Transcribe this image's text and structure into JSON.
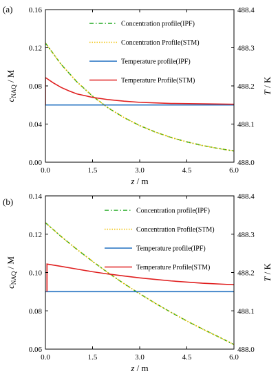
{
  "chart_data": [
    {
      "type": "line",
      "panel_label": "(a)",
      "xlabel_var": "z",
      "xlabel_unit": " / m",
      "ylabel_var": "c",
      "ylabel_sub": "NAQ",
      "ylabel_unit": " / M",
      "y2label_var": "T",
      "y2label_unit": " / K",
      "xlim": [
        0,
        6.0
      ],
      "ylim": [
        0,
        0.16
      ],
      "y2lim": [
        488.0,
        488.4
      ],
      "xticks": [
        "0.0",
        "1.5",
        "3.0",
        "4.5",
        "6.0"
      ],
      "yticks": [
        "0.00",
        "0.04",
        "0.08",
        "0.12",
        "0.16"
      ],
      "y2ticks": [
        "488.0",
        "488.1",
        "488.2",
        "488.3",
        "488.4"
      ],
      "legend": "top-right",
      "series": [
        {
          "name": "Concentration profile(IPF)",
          "axis": "left",
          "color": "#22aa22",
          "dash": "6,3,1.5,3",
          "x": [
            0,
            0.5,
            1.0,
            1.5,
            2.0,
            2.5,
            3.0,
            3.5,
            4.0,
            4.5,
            5.0,
            5.5,
            6.0
          ],
          "y": [
            0.125,
            0.1026,
            0.0843,
            0.0693,
            0.0569,
            0.0468,
            0.0384,
            0.0316,
            0.0259,
            0.0213,
            0.0175,
            0.0144,
            0.0118
          ]
        },
        {
          "name": "Concentration Profile(STM)",
          "axis": "left",
          "color": "#f0c000",
          "dash": "1.5,2",
          "x": [
            0,
            0.5,
            1.0,
            1.5,
            2.0,
            2.5,
            3.0,
            3.5,
            4.0,
            4.5,
            5.0,
            5.5,
            6.0
          ],
          "y": [
            0.125,
            0.1026,
            0.0843,
            0.0693,
            0.0569,
            0.0468,
            0.0384,
            0.0316,
            0.0259,
            0.0213,
            0.0175,
            0.0144,
            0.0118
          ]
        },
        {
          "name": "Temperature profile(IPF)",
          "axis": "right",
          "color": "#1f6fc0",
          "dash": "",
          "x": [
            0,
            6.0
          ],
          "y": [
            488.15,
            488.15
          ]
        },
        {
          "name": "Temperature Profile(STM)",
          "axis": "right",
          "color": "#e02020",
          "dash": "",
          "x": [
            0,
            0,
            0.25,
            0.5,
            0.75,
            1.0,
            1.5,
            2.0,
            2.5,
            3.0,
            4.0,
            5.0,
            6.0
          ],
          "y": [
            488.15,
            488.222,
            488.208,
            488.196,
            488.187,
            488.179,
            488.17,
            488.164,
            488.16,
            488.157,
            488.154,
            488.153,
            488.152
          ]
        }
      ]
    },
    {
      "type": "line",
      "panel_label": "(b)",
      "xlabel_var": "z",
      "xlabel_unit": " / m",
      "ylabel_var": "c",
      "ylabel_sub": "NAQ",
      "ylabel_unit": " / M",
      "y2label_var": "T",
      "y2label_unit": " / K",
      "xlim": [
        0,
        6.0
      ],
      "ylim": [
        0.06,
        0.14
      ],
      "y2lim": [
        488.0,
        488.4
      ],
      "xticks": [
        "0.0",
        "1.5",
        "3.0",
        "4.5",
        "6.0"
      ],
      "yticks": [
        "0.06",
        "0.08",
        "0.10",
        "0.12",
        "0.14"
      ],
      "y2ticks": [
        "488.0",
        "488.1",
        "488.2",
        "488.3",
        "488.4"
      ],
      "legend": "top-right",
      "series": [
        {
          "name": "Concentration profile(IPF)",
          "axis": "left",
          "color": "#22aa22",
          "dash": "6,3,1.5,3",
          "x": [
            0,
            0.5,
            1.0,
            1.5,
            2.0,
            2.5,
            3.0,
            3.5,
            4.0,
            4.5,
            5.0,
            5.5,
            6.0
          ],
          "y": [
            0.126,
            0.1188,
            0.1121,
            0.1058,
            0.0998,
            0.0942,
            0.0889,
            0.0839,
            0.0792,
            0.0747,
            0.0705,
            0.0665,
            0.0624
          ]
        },
        {
          "name": "Concentration Profile(STM)",
          "axis": "left",
          "color": "#f0c000",
          "dash": "1.5,2",
          "x": [
            0,
            0.5,
            1.0,
            1.5,
            2.0,
            2.5,
            3.0,
            3.5,
            4.0,
            4.5,
            5.0,
            5.5,
            6.0
          ],
          "y": [
            0.126,
            0.1188,
            0.1121,
            0.1058,
            0.0998,
            0.0942,
            0.0889,
            0.0839,
            0.0792,
            0.0747,
            0.0705,
            0.0665,
            0.0624
          ]
        },
        {
          "name": "Temperature profile(IPF)",
          "axis": "right",
          "color": "#1f6fc0",
          "dash": "",
          "x": [
            0,
            6.0
          ],
          "y": [
            488.15,
            488.15
          ]
        },
        {
          "name": "Temperature Profile(STM)",
          "axis": "right",
          "color": "#e02020",
          "dash": "",
          "x": [
            0.05,
            0.05,
            0.5,
            1.0,
            1.5,
            2.0,
            2.5,
            3.0,
            3.5,
            4.0,
            4.5,
            5.0,
            5.5,
            6.0
          ],
          "y": [
            488.15,
            488.222,
            488.216,
            488.209,
            488.202,
            488.196,
            488.191,
            488.186,
            488.182,
            488.178,
            488.175,
            488.172,
            488.17,
            488.168
          ]
        }
      ]
    }
  ]
}
